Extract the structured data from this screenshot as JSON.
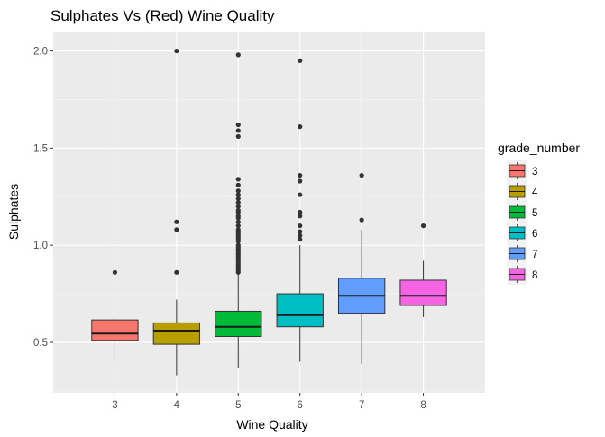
{
  "chart_data": {
    "type": "box",
    "title": "Sulphates Vs (Red) Wine Quality",
    "xlabel": "Wine Quality",
    "ylabel": "Sulphates",
    "ylim": [
      0.24,
      2.1
    ],
    "yticks": [
      "0.5",
      "1.0",
      "1.5",
      "2.0"
    ],
    "ytick_values": [
      0.5,
      1.0,
      1.5,
      2.0
    ],
    "grid": true,
    "legend": {
      "title": "grade_number",
      "placement": "right"
    },
    "categories": [
      "3",
      "4",
      "5",
      "6",
      "7",
      "8"
    ],
    "colors": [
      "#F8766D",
      "#B79F00",
      "#00BA38",
      "#00BFC4",
      "#619CFF",
      "#F564E3"
    ],
    "boxes": [
      {
        "label": "3",
        "whisker_low": 0.4,
        "q1": 0.51,
        "median": 0.545,
        "q3": 0.615,
        "whisker_high": 0.63,
        "outliers": [
          0.86
        ]
      },
      {
        "label": "4",
        "whisker_low": 0.33,
        "q1": 0.49,
        "median": 0.56,
        "q3": 0.6,
        "whisker_high": 0.72,
        "outliers": [
          0.86,
          1.08,
          1.12,
          2.0
        ]
      },
      {
        "label": "5",
        "whisker_low": 0.37,
        "q1": 0.53,
        "median": 0.58,
        "q3": 0.66,
        "whisker_high": 0.85,
        "outliers": [
          0.86,
          0.87,
          0.88,
          0.89,
          0.9,
          0.91,
          0.92,
          0.93,
          0.94,
          0.95,
          0.96,
          0.97,
          0.98,
          0.99,
          1.0,
          1.02,
          1.03,
          1.04,
          1.05,
          1.06,
          1.07,
          1.08,
          1.1,
          1.12,
          1.14,
          1.15,
          1.17,
          1.18,
          1.2,
          1.22,
          1.24,
          1.26,
          1.28,
          1.31,
          1.34,
          1.56,
          1.59,
          1.62,
          1.98
        ]
      },
      {
        "label": "6",
        "whisker_low": 0.4,
        "q1": 0.58,
        "median": 0.64,
        "q3": 0.75,
        "whisker_high": 1.0,
        "outliers": [
          1.03,
          1.05,
          1.07,
          1.1,
          1.15,
          1.17,
          1.26,
          1.33,
          1.36,
          1.61,
          1.95
        ]
      },
      {
        "label": "7",
        "whisker_low": 0.39,
        "q1": 0.65,
        "median": 0.74,
        "q3": 0.83,
        "whisker_high": 1.08,
        "outliers": [
          1.13,
          1.36
        ]
      },
      {
        "label": "8",
        "whisker_low": 0.63,
        "q1": 0.69,
        "median": 0.74,
        "q3": 0.82,
        "whisker_high": 0.92,
        "outliers": [
          1.1
        ]
      }
    ]
  }
}
